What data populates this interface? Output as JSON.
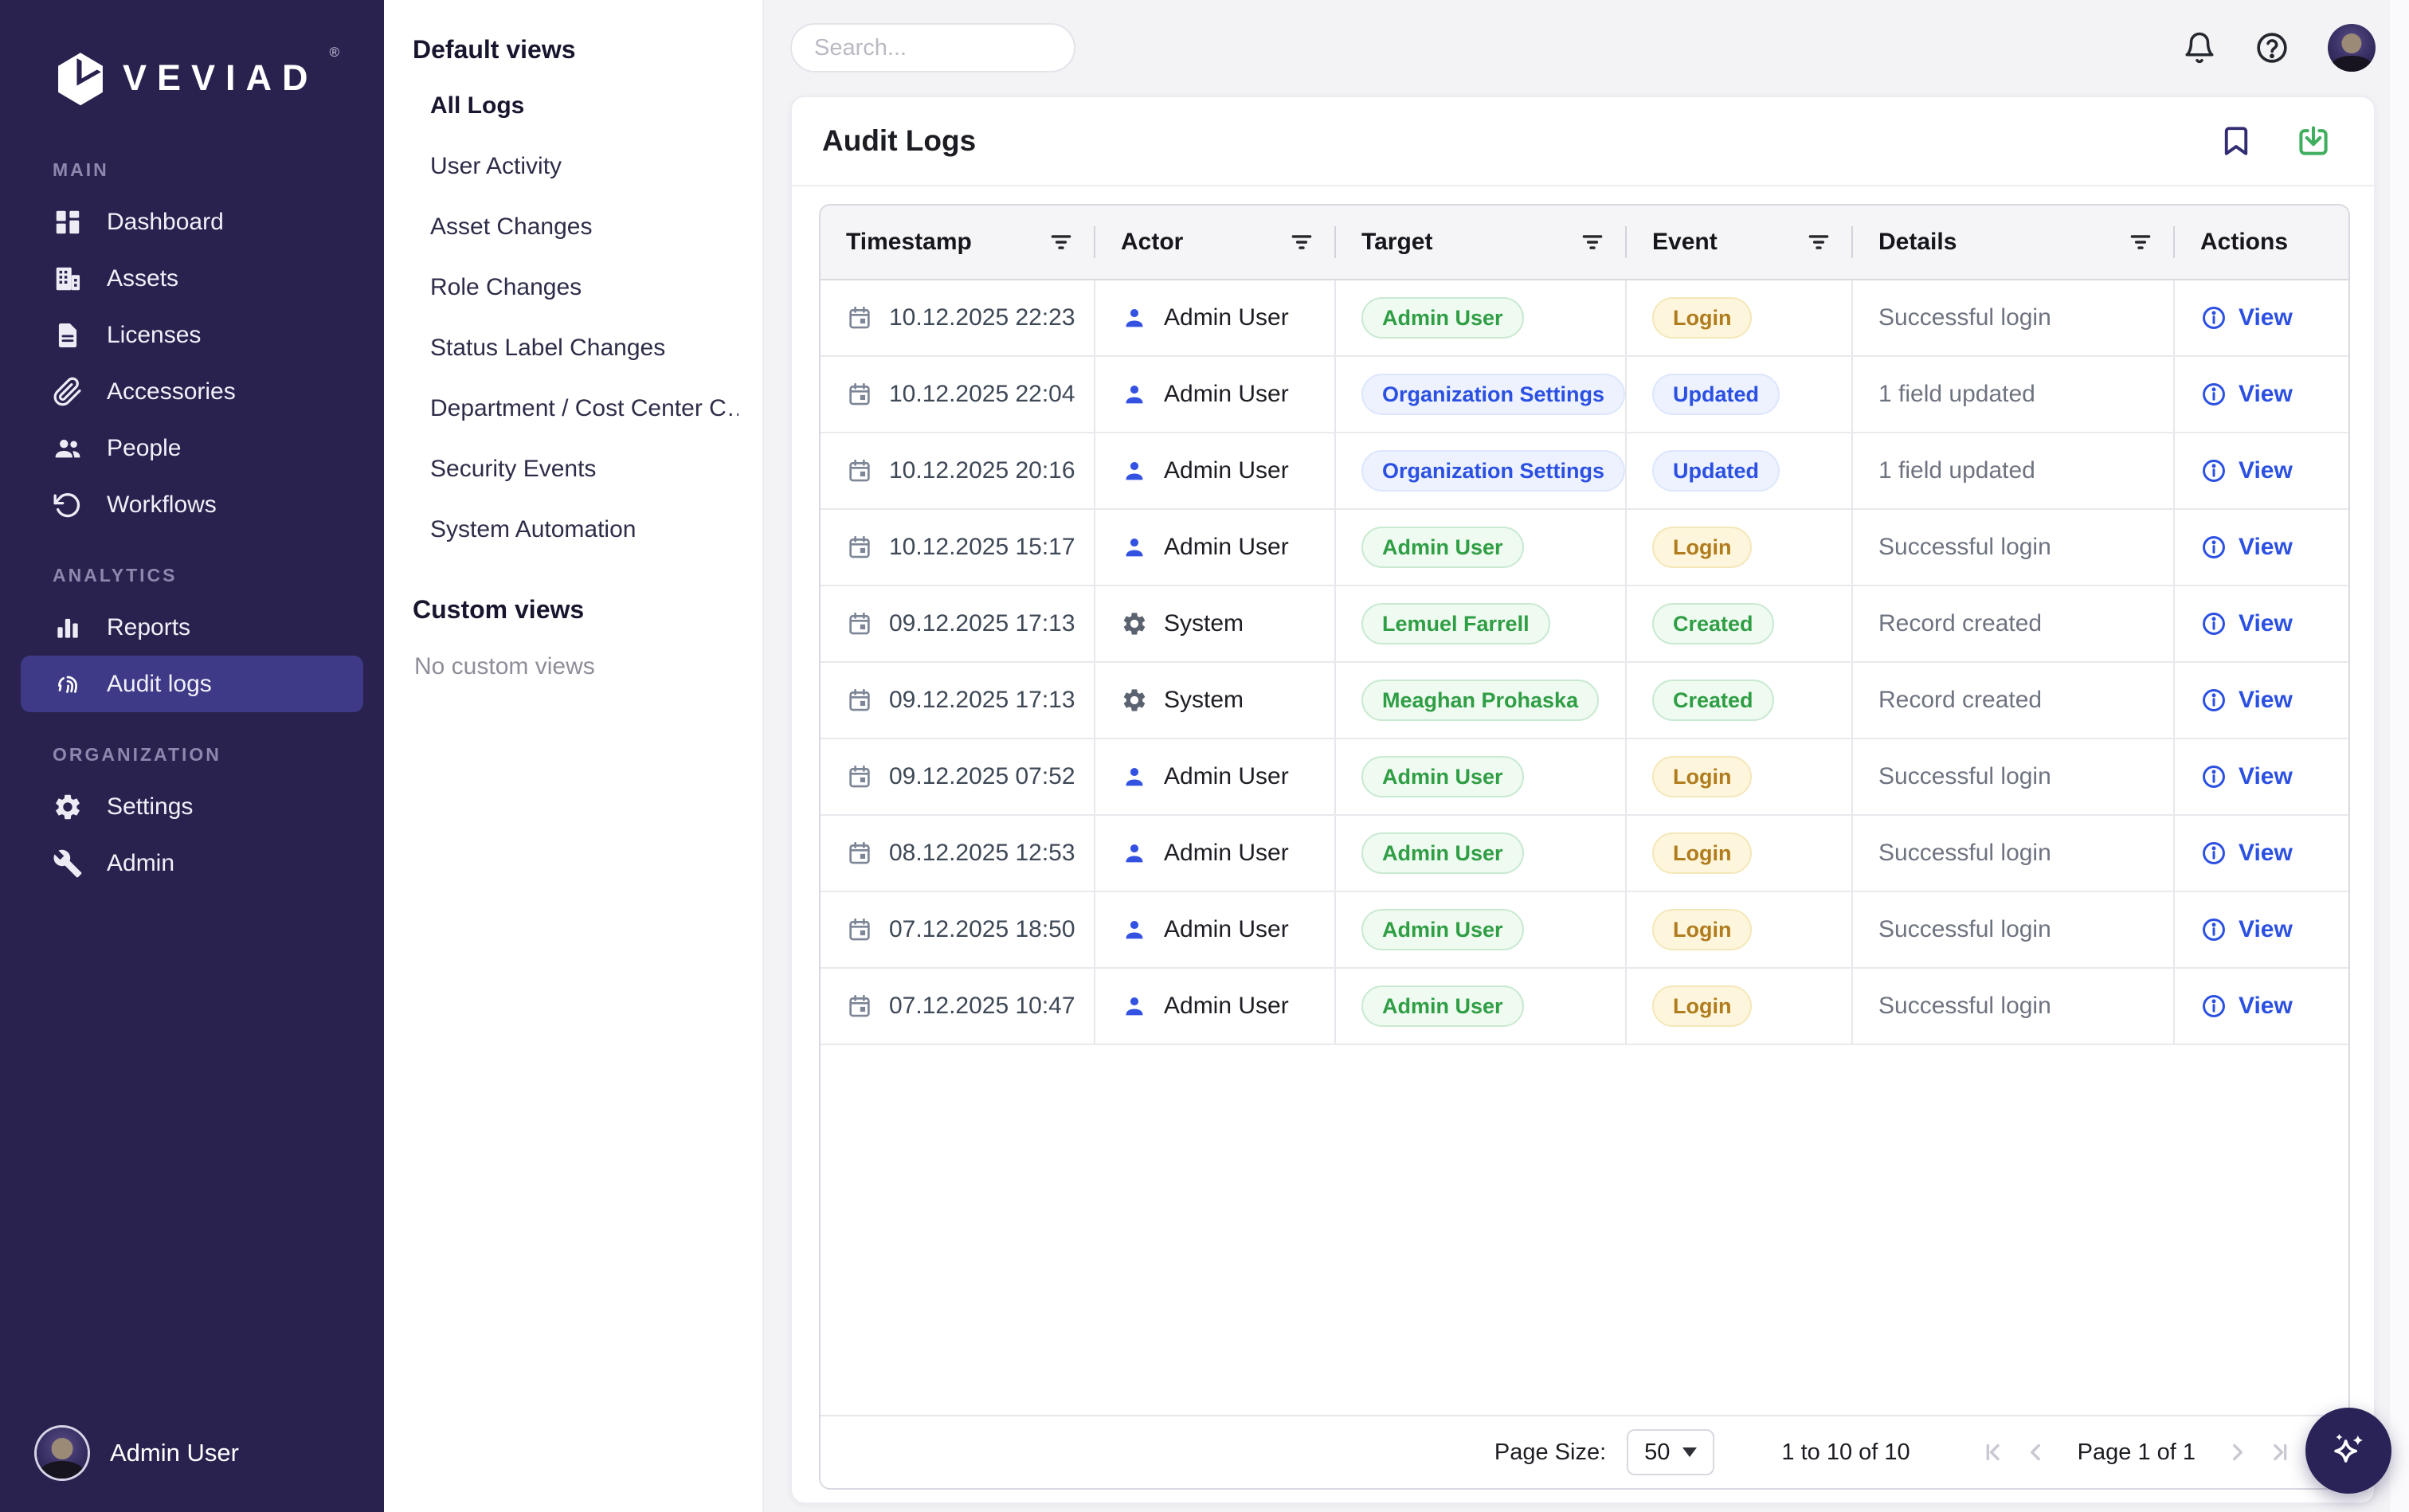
{
  "brand": {
    "name": "VEVIAD",
    "registered": "®"
  },
  "sidebar": {
    "sections": [
      {
        "label": "MAIN",
        "items": [
          {
            "icon": "dashboard-icon",
            "label": "Dashboard"
          },
          {
            "icon": "assets-icon",
            "label": "Assets"
          },
          {
            "icon": "licenses-icon",
            "label": "Licenses"
          },
          {
            "icon": "accessories-icon",
            "label": "Accessories"
          },
          {
            "icon": "people-icon",
            "label": "People"
          },
          {
            "icon": "workflows-icon",
            "label": "Workflows"
          }
        ]
      },
      {
        "label": "ANALYTICS",
        "items": [
          {
            "icon": "reports-icon",
            "label": "Reports"
          },
          {
            "icon": "audit-logs-icon",
            "label": "Audit logs",
            "active": true
          }
        ]
      },
      {
        "label": "ORGANIZATION",
        "items": [
          {
            "icon": "settings-icon",
            "label": "Settings"
          },
          {
            "icon": "admin-icon",
            "label": "Admin"
          }
        ]
      }
    ],
    "footer_user": "Admin User"
  },
  "views_panel": {
    "default_header": "Default views",
    "default_views": [
      {
        "label": "All Logs",
        "active": true
      },
      {
        "label": "User Activity"
      },
      {
        "label": "Asset Changes"
      },
      {
        "label": "Role Changes"
      },
      {
        "label": "Status Label Changes"
      },
      {
        "label": "Department / Cost Center C…"
      },
      {
        "label": "Security Events"
      },
      {
        "label": "System Automation"
      }
    ],
    "custom_header": "Custom views",
    "custom_empty": "No custom views"
  },
  "topbar": {
    "search_placeholder": "Search..."
  },
  "card": {
    "title": "Audit Logs"
  },
  "table": {
    "columns": [
      {
        "label": "Timestamp",
        "filter": true
      },
      {
        "label": "Actor",
        "filter": true
      },
      {
        "label": "Target",
        "filter": true
      },
      {
        "label": "Event",
        "filter": true
      },
      {
        "label": "Details",
        "filter": true
      },
      {
        "label": "Actions",
        "filter": false
      }
    ],
    "rows": [
      {
        "timestamp": "10.12.2025 22:23",
        "actor": "Admin User",
        "actor_icon": "user-icon",
        "target": "Admin User",
        "target_color": "green",
        "event": "Login",
        "event_color": "yellow",
        "details": "Successful login",
        "action": "View"
      },
      {
        "timestamp": "10.12.2025 22:04",
        "actor": "Admin User",
        "actor_icon": "user-icon",
        "target": "Organization Settings",
        "target_color": "blue",
        "event": "Updated",
        "event_color": "blue",
        "details": "1 field updated",
        "action": "View"
      },
      {
        "timestamp": "10.12.2025 20:16",
        "actor": "Admin User",
        "actor_icon": "user-icon",
        "target": "Organization Settings",
        "target_color": "blue",
        "event": "Updated",
        "event_color": "blue",
        "details": "1 field updated",
        "action": "View"
      },
      {
        "timestamp": "10.12.2025 15:17",
        "actor": "Admin User",
        "actor_icon": "user-icon",
        "target": "Admin User",
        "target_color": "green",
        "event": "Login",
        "event_color": "yellow",
        "details": "Successful login",
        "action": "View"
      },
      {
        "timestamp": "09.12.2025 17:13",
        "actor": "System",
        "actor_icon": "system-gear-icon",
        "target": "Lemuel Farrell",
        "target_color": "green",
        "event": "Created",
        "event_color": "green",
        "details": "Record created",
        "action": "View"
      },
      {
        "timestamp": "09.12.2025 17:13",
        "actor": "System",
        "actor_icon": "system-gear-icon",
        "target": "Meaghan Prohaska",
        "target_color": "green",
        "event": "Created",
        "event_color": "green",
        "details": "Record created",
        "action": "View"
      },
      {
        "timestamp": "09.12.2025 07:52",
        "actor": "Admin User",
        "actor_icon": "user-icon",
        "target": "Admin User",
        "target_color": "green",
        "event": "Login",
        "event_color": "yellow",
        "details": "Successful login",
        "action": "View"
      },
      {
        "timestamp": "08.12.2025 12:53",
        "actor": "Admin User",
        "actor_icon": "user-icon",
        "target": "Admin User",
        "target_color": "green",
        "event": "Login",
        "event_color": "yellow",
        "details": "Successful login",
        "action": "View"
      },
      {
        "timestamp": "07.12.2025 18:50",
        "actor": "Admin User",
        "actor_icon": "user-icon",
        "target": "Admin User",
        "target_color": "green",
        "event": "Login",
        "event_color": "yellow",
        "details": "Successful login",
        "action": "View"
      },
      {
        "timestamp": "07.12.2025 10:47",
        "actor": "Admin User",
        "actor_icon": "user-icon",
        "target": "Admin User",
        "target_color": "green",
        "event": "Login",
        "event_color": "yellow",
        "details": "Successful login",
        "action": "View"
      }
    ]
  },
  "pagination": {
    "page_size_label": "Page Size:",
    "page_size": "50",
    "range_text": "1 to 10 of 10",
    "page_text": "Page 1 of 1"
  },
  "colors": {
    "sidebar_bg": "#29224f",
    "active_nav_bg": "#3f3a87",
    "accent_blue": "#2b50e2",
    "badge_green": "#2f9e44",
    "badge_yellow": "#b07c1e",
    "download_green": "#3fae5e",
    "main_bg": "#f3f3f6"
  }
}
